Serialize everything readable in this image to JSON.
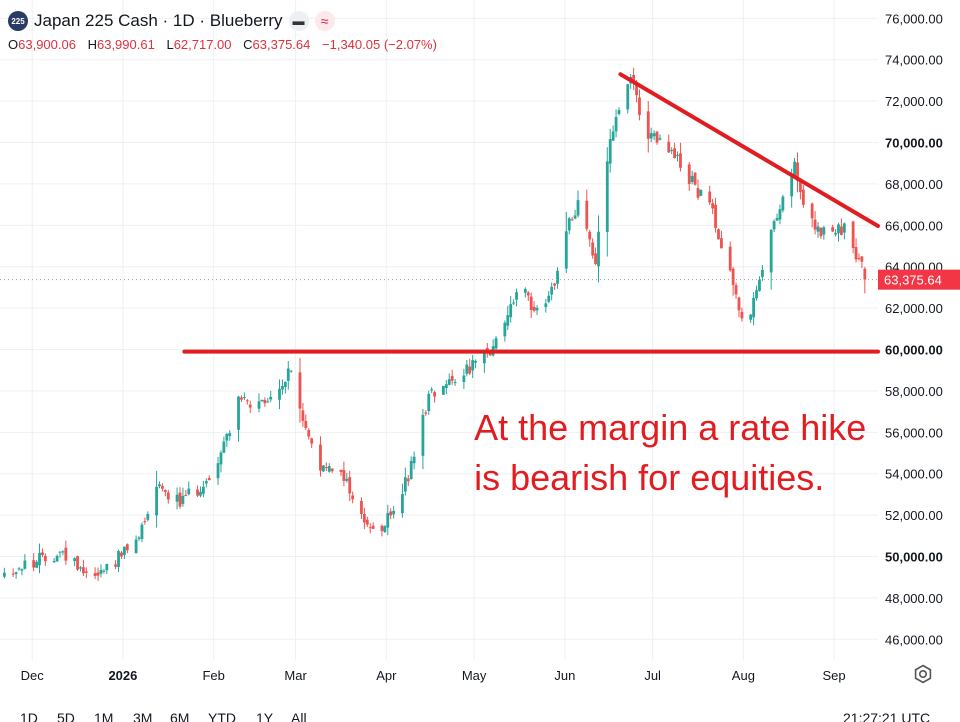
{
  "header": {
    "symbol_badge": "225",
    "title": "Japan 225 Cash · 1D · Blueberry",
    "icons": [
      "minus-icon",
      "wave-icon"
    ],
    "ohlc": {
      "o_label": "O",
      "o": "63,900.06",
      "h_label": "H",
      "h": "63,990.61",
      "l_label": "L",
      "l": "62,717.00",
      "c_label": "C",
      "c": "63,375.64",
      "change": "−1,340.05 (−2.07%)"
    }
  },
  "bottom_bar": {
    "timeframes": [
      "1D",
      "5D",
      "1M",
      "3M",
      "6M",
      "YTD",
      "1Y",
      "All"
    ],
    "clock": "21:27:21 UTC"
  },
  "colors": {
    "up": "#26a69a",
    "down": "#ef5350",
    "annotation": "#e11d22",
    "price_tag": "#f23645",
    "grid": "#eef0f3"
  },
  "chart_data": {
    "type": "candlestick",
    "title": "Japan 225 Cash · 1D · Blueberry",
    "ylim": [
      45000,
      76500
    ],
    "y_ticks": [
      "46,000.00",
      "48,000.00",
      "50,000.00",
      "52,000.00",
      "54,000.00",
      "56,000.00",
      "58,000.00",
      "60,000.00",
      "62,000.00",
      "64,000.00",
      "66,000.00",
      "68,000.00",
      "70,000.00",
      "72,000.00",
      "74,000.00",
      "76,000.00"
    ],
    "y_tick_values": [
      46000,
      48000,
      50000,
      52000,
      54000,
      56000,
      58000,
      60000,
      62000,
      64000,
      66000,
      68000,
      70000,
      72000,
      74000,
      76000
    ],
    "bold_ticks": [
      50000,
      60000,
      70000
    ],
    "x_ticks": [
      {
        "label": "Dec",
        "date": "2025-12-01"
      },
      {
        "label": "2026",
        "date": "2026-01-01",
        "bold": true
      },
      {
        "label": "Feb",
        "date": "2026-02-01"
      },
      {
        "label": "Mar",
        "date": "2026-03-01"
      },
      {
        "label": "Apr",
        "date": "2026-04-01"
      },
      {
        "label": "May",
        "date": "2026-05-01"
      },
      {
        "label": "Jun",
        "date": "2026-06-01"
      },
      {
        "label": "Jul",
        "date": "2026-07-01"
      },
      {
        "label": "Aug",
        "date": "2026-08-01"
      },
      {
        "label": "Sep",
        "date": "2026-09-01"
      }
    ],
    "start_date": "2025-11-21",
    "end_date": "2026-09-12",
    "price_path": [
      [
        "2025-11-21",
        49200
      ],
      [
        "2025-12-10",
        50200
      ],
      [
        "2025-12-22",
        49100
      ],
      [
        "2026-01-05",
        50600
      ],
      [
        "2026-01-12",
        53600
      ],
      [
        "2026-01-20",
        52600
      ],
      [
        "2026-01-30",
        53700
      ],
      [
        "2026-02-05",
        55800
      ],
      [
        "2026-02-09",
        57700
      ],
      [
        "2026-02-14",
        57100
      ],
      [
        "2026-02-20",
        57500
      ],
      [
        "2026-02-27",
        59000
      ],
      [
        "2026-03-04",
        56000
      ],
      [
        "2026-03-10",
        54100
      ],
      [
        "2026-03-16",
        54300
      ],
      [
        "2026-03-22",
        52100
      ],
      [
        "2026-03-29",
        50900
      ],
      [
        "2026-04-03",
        52400
      ],
      [
        "2026-04-08",
        53800
      ],
      [
        "2026-04-15",
        57800
      ],
      [
        "2026-04-22",
        58600
      ],
      [
        "2026-05-01",
        59300
      ],
      [
        "2026-05-07",
        59900
      ],
      [
        "2026-05-12",
        61800
      ],
      [
        "2026-05-16",
        63000
      ],
      [
        "2026-05-22",
        61800
      ],
      [
        "2026-05-28",
        63300
      ],
      [
        "2026-06-02",
        66100
      ],
      [
        "2026-06-06",
        67400
      ],
      [
        "2026-06-11",
        64200
      ],
      [
        "2026-06-16",
        70200
      ],
      [
        "2026-06-20",
        71800
      ],
      [
        "2026-06-23",
        73000
      ],
      [
        "2026-06-29",
        70300
      ],
      [
        "2026-07-06",
        69700
      ],
      [
        "2026-07-14",
        68100
      ],
      [
        "2026-07-21",
        66600
      ],
      [
        "2026-07-27",
        63800
      ],
      [
        "2026-08-01",
        61000
      ],
      [
        "2026-08-06",
        63100
      ],
      [
        "2026-08-11",
        66300
      ],
      [
        "2026-08-18",
        68800
      ],
      [
        "2026-08-22",
        66200
      ],
      [
        "2026-08-29",
        65500
      ],
      [
        "2026-09-04",
        65800
      ],
      [
        "2026-09-09",
        64300
      ],
      [
        "2026-09-12",
        63376
      ]
    ],
    "last_price": 63375.64,
    "last_price_label": "63,375.64",
    "trendlines": [
      {
        "name": "support",
        "from": {
          "date": "2026-01-22",
          "value": 59900
        },
        "to": {
          "date": "2026-09-12",
          "value": 59900,
          "extend_right": true
        }
      },
      {
        "name": "resistance",
        "from": {
          "date": "2026-06-20",
          "value": 73300
        },
        "to": {
          "date": "2026-09-12",
          "value": 66300,
          "extend_right": true
        }
      }
    ],
    "annotation": {
      "lines": [
        "At the margin a rate hike",
        "is bearish for equities."
      ],
      "anchor": {
        "date": "2026-05-01",
        "value": 56100
      }
    }
  }
}
